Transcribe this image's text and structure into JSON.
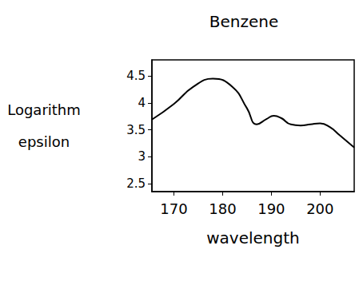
{
  "chart_data": {
    "type": "line",
    "title": "Benzene",
    "x_label": "wavelength",
    "y_label": "Logarithm epsilon",
    "x": [
      165.5,
      170,
      174,
      178,
      182,
      185,
      187,
      189,
      190.5,
      192,
      194,
      196,
      198,
      200,
      202,
      204,
      207
    ],
    "values": [
      3.69,
      3.98,
      4.3,
      4.45,
      4.3,
      3.9,
      3.6,
      3.7,
      3.76,
      3.72,
      3.6,
      3.58,
      3.6,
      3.62,
      3.55,
      3.4,
      3.17
    ],
    "color": "#000000",
    "xlim": [
      165.5,
      207
    ],
    "ylim": [
      2.35,
      4.8
    ],
    "xticks": [
      170,
      180,
      190,
      200
    ],
    "yticks": [
      2.5,
      3,
      3.5,
      4,
      4.5
    ],
    "grid": false
  }
}
